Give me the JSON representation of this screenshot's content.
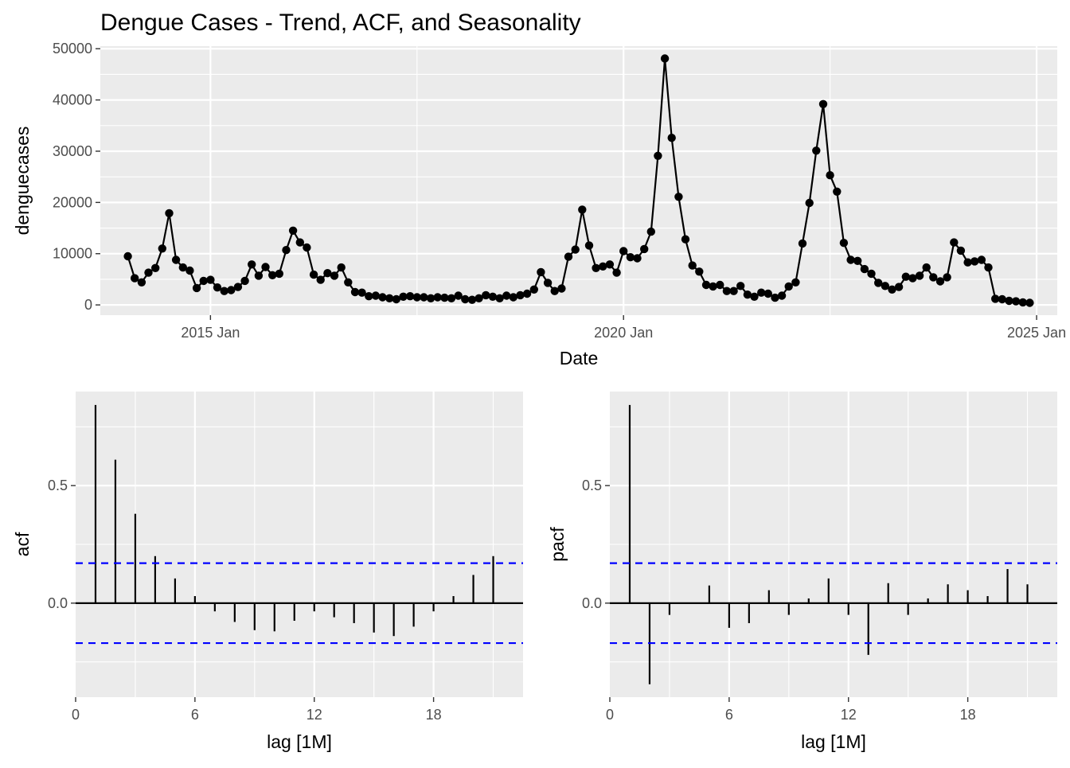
{
  "page_title": "Dengue Cases - Trend, ACF, and Seasonality",
  "colors": {
    "panel": "#ebebeb",
    "grid": "#ffffff",
    "line": "#000000",
    "ci": "#0000ff"
  },
  "chart_data": [
    {
      "type": "line",
      "title": "Dengue Cases - Trend, ACF, and Seasonality",
      "xlabel": "Date",
      "ylabel": "denguecases",
      "x_start": "2014-01",
      "x_step": "1 month",
      "xlim": [
        "2013-09",
        "2025-04"
      ],
      "ylim": [
        -2000,
        50500
      ],
      "x_ticks": [
        "2015 Jan",
        "2020 Jan",
        "2025 Jan"
      ],
      "y_ticks": [
        "0",
        "10000",
        "20000",
        "30000",
        "40000",
        "50000"
      ],
      "grid": true,
      "markers": true,
      "values": [
        9500,
        5200,
        4400,
        6300,
        7200,
        11000,
        17900,
        8800,
        7300,
        6700,
        3300,
        4700,
        4900,
        3400,
        2700,
        2900,
        3500,
        4700,
        7900,
        5700,
        7400,
        5800,
        6100,
        10700,
        14500,
        12200,
        11200,
        5900,
        4900,
        6200,
        5700,
        7300,
        4400,
        2500,
        2400,
        1700,
        1800,
        1500,
        1300,
        1100,
        1600,
        1700,
        1500,
        1500,
        1300,
        1500,
        1400,
        1300,
        1800,
        1100,
        1000,
        1300,
        1900,
        1600,
        1300,
        1800,
        1500,
        1900,
        2200,
        3000,
        6400,
        4300,
        2700,
        3200,
        9400,
        10800,
        18600,
        11600,
        7200,
        7500,
        7900,
        6300,
        10500,
        9300,
        9100,
        10900,
        14300,
        29100,
        48100,
        32600,
        21100,
        12800,
        7700,
        6500,
        3900,
        3600,
        3900,
        2700,
        2700,
        3700,
        2000,
        1600,
        2400,
        2200,
        1400,
        1800,
        3600,
        4400,
        12000,
        19900,
        30100,
        39200,
        25300,
        22100,
        12100,
        8800,
        8600,
        7000,
        6100,
        4300,
        3700,
        3000,
        3500,
        5500,
        5200,
        5700,
        7300,
        5400,
        4600,
        5400,
        12200,
        10600,
        8300,
        8500,
        8800,
        7300,
        1200,
        1100,
        800,
        700,
        500,
        400
      ]
    },
    {
      "type": "bar",
      "xlabel": "lag [1M]",
      "ylabel": "acf",
      "x": [
        1,
        2,
        3,
        4,
        5,
        6,
        7,
        8,
        9,
        10,
        11,
        12,
        13,
        14,
        15,
        16,
        17,
        18,
        19,
        20,
        21
      ],
      "values": [
        0.843,
        0.61,
        0.38,
        0.2,
        0.105,
        0.03,
        -0.035,
        -0.08,
        -0.115,
        -0.12,
        -0.075,
        -0.035,
        -0.06,
        -0.085,
        -0.125,
        -0.14,
        -0.1,
        -0.035,
        0.03,
        0.12,
        0.2
      ],
      "ci": [
        0.17,
        -0.17
      ],
      "xlim": [
        0,
        22.5
      ],
      "ylim": [
        -0.4,
        0.9
      ],
      "x_ticks": [
        "0",
        "6",
        "12",
        "18"
      ],
      "y_ticks": [
        "0.0",
        "0.5"
      ],
      "grid": true
    },
    {
      "type": "bar",
      "xlabel": "lag [1M]",
      "ylabel": "pacf",
      "x": [
        1,
        2,
        3,
        4,
        5,
        6,
        7,
        8,
        9,
        10,
        11,
        12,
        13,
        14,
        15,
        16,
        17,
        18,
        19,
        20,
        21
      ],
      "values": [
        0.843,
        -0.345,
        -0.05,
        0.0,
        0.075,
        -0.105,
        -0.085,
        0.055,
        -0.05,
        0.02,
        0.105,
        -0.05,
        -0.22,
        0.085,
        -0.05,
        0.02,
        0.08,
        0.055,
        0.03,
        0.145,
        0.08
      ],
      "ci": [
        0.17,
        -0.17
      ],
      "xlim": [
        0,
        22.5
      ],
      "ylim": [
        -0.4,
        0.9
      ],
      "x_ticks": [
        "0",
        "6",
        "12",
        "18"
      ],
      "y_ticks": [
        "0.0",
        "0.5"
      ],
      "grid": true
    }
  ]
}
